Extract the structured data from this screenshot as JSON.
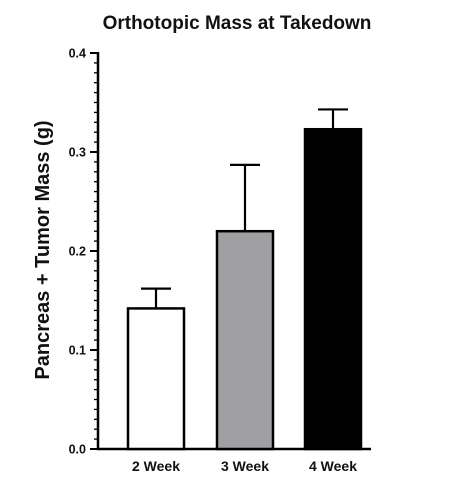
{
  "chart_data": {
    "type": "bar",
    "title": "Orthotopic Mass at Takedown",
    "xlabel": "",
    "ylabel": "Pancreas + Tumor Mass (g)",
    "ylim": [
      0,
      0.4
    ],
    "yticks": [
      "0.0",
      "0.1",
      "0.2",
      "0.3",
      "0.4"
    ],
    "minor_ticks_per_major": 10,
    "grid": false,
    "legend": "none",
    "categories": [
      "2 Week",
      "3 Week",
      "4 Week"
    ],
    "values": [
      0.142,
      0.22,
      0.323
    ],
    "error_upper": [
      0.02,
      0.067,
      0.02
    ],
    "colors": [
      "#ffffff",
      "#a0a0a3",
      "#000000"
    ]
  }
}
